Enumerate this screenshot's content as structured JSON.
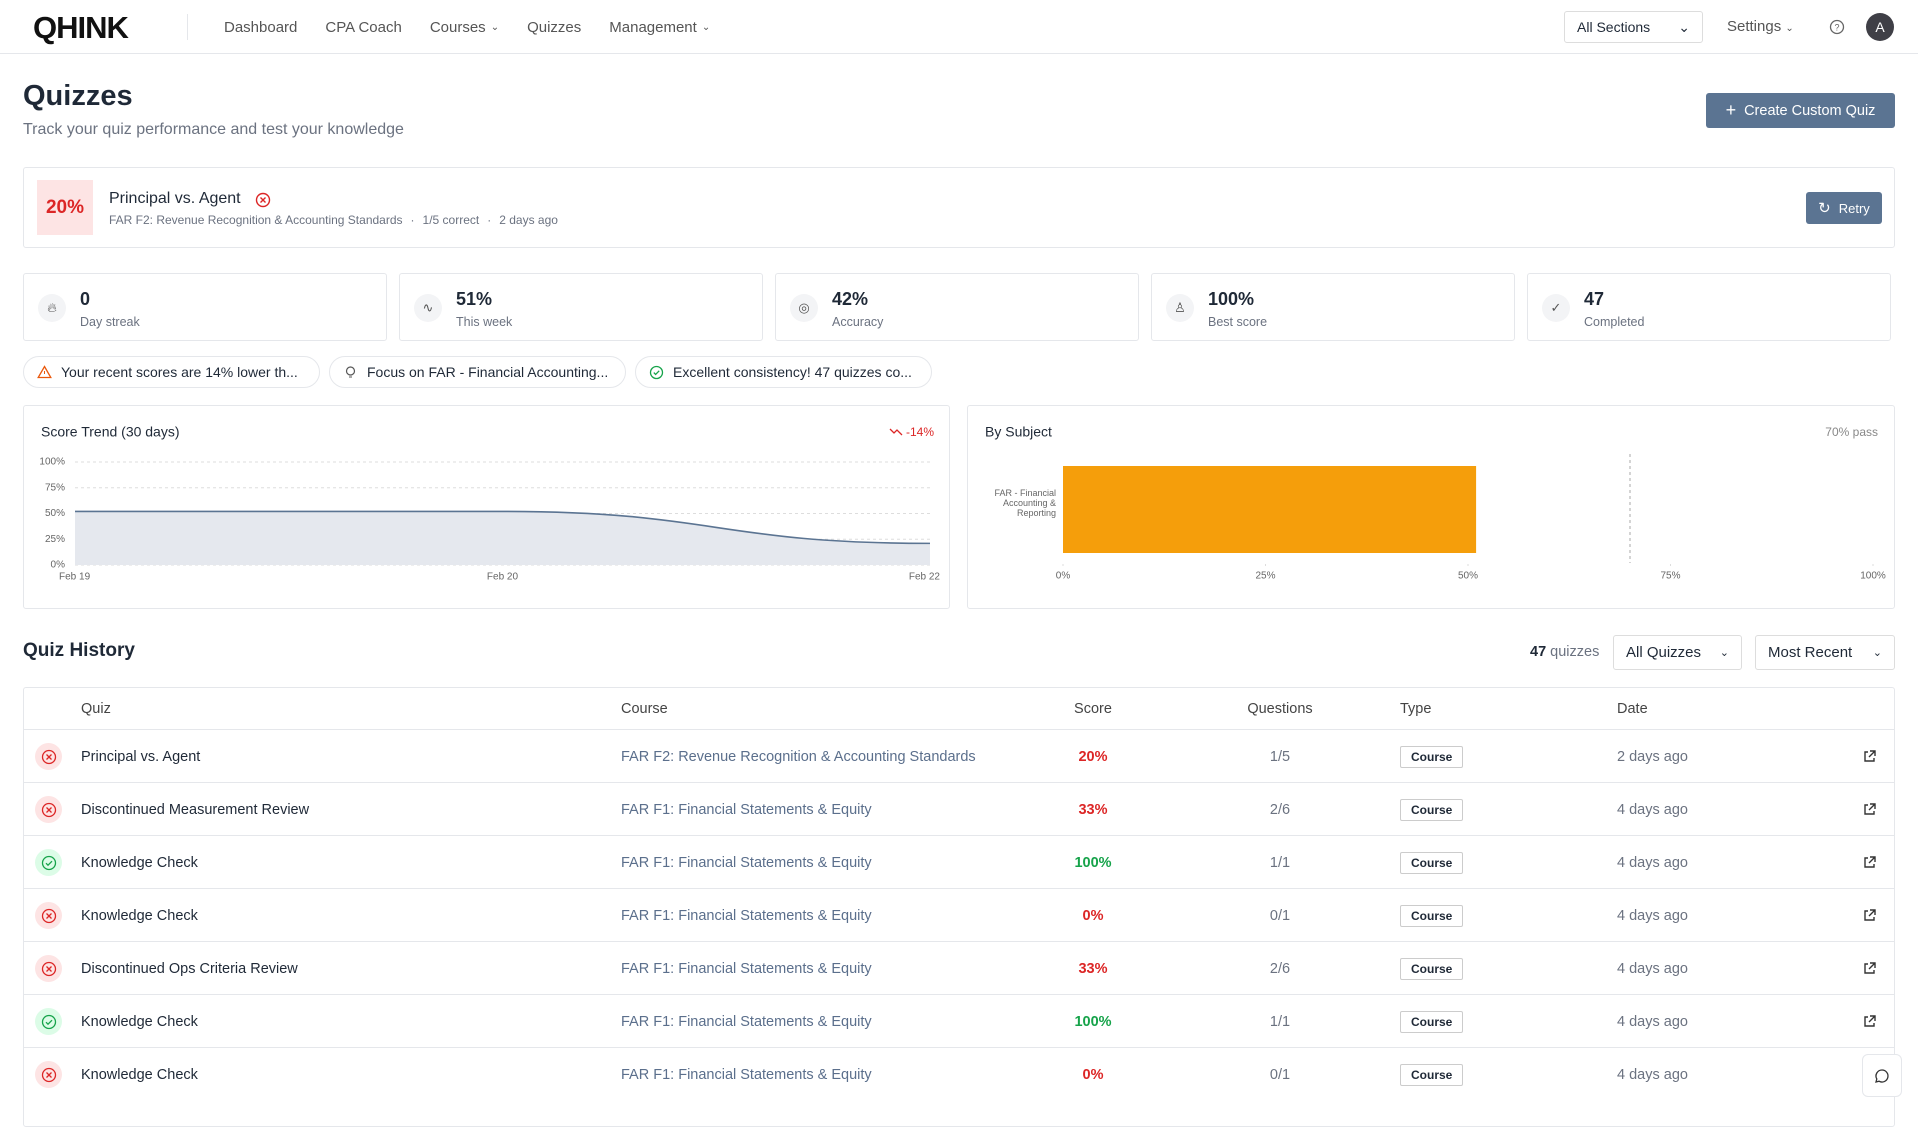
{
  "nav": {
    "logo": "QHINK",
    "links": [
      {
        "label": "Dashboard",
        "menu": false
      },
      {
        "label": "CPA Coach",
        "menu": false
      },
      {
        "label": "Courses",
        "menu": true
      },
      {
        "label": "Quizzes",
        "menu": false
      },
      {
        "label": "Management",
        "menu": true
      }
    ],
    "section_select": "All Sections",
    "settings": "Settings",
    "avatar": "A"
  },
  "header": {
    "title": "Quizzes",
    "subtitle": "Track your quiz performance and test your knowledge",
    "create_button": "Create Custom Quiz"
  },
  "latest": {
    "score": "20%",
    "title": "Principal vs. Agent",
    "course": "FAR F2: Revenue Recognition & Accounting Standards",
    "correct": "1/5 correct",
    "when": "2 days ago",
    "retry": "Retry"
  },
  "stats": [
    {
      "value": "0",
      "label": "Day streak"
    },
    {
      "value": "51%",
      "label": "This week"
    },
    {
      "value": "42%",
      "label": "Accuracy"
    },
    {
      "value": "100%",
      "label": "Best score"
    },
    {
      "value": "47",
      "label": "Completed"
    }
  ],
  "insights": [
    {
      "text": "Your recent scores are 14% lower th...",
      "kind": "warning"
    },
    {
      "text": "Focus on FAR - Financial Accounting...",
      "kind": "tip"
    },
    {
      "text": "Excellent consistency! 47 quizzes co...",
      "kind": "success"
    }
  ],
  "score_trend": {
    "type": "area",
    "title": "Score Trend (30 days)",
    "change": "-14%",
    "categories": [
      "Feb 19",
      "Feb 20",
      "Feb 22"
    ],
    "values": [
      52,
      52,
      21
    ],
    "ylim": [
      0,
      100
    ],
    "yticks": [
      {
        "value": 0,
        "label": "0%"
      },
      {
        "value": 25,
        "label": "25%"
      },
      {
        "value": 50,
        "label": "50%"
      },
      {
        "value": 75,
        "label": "75%"
      },
      {
        "value": 100,
        "label": "100%"
      }
    ],
    "color": "#5b7492"
  },
  "by_subject": {
    "type": "hbar",
    "title": "By Subject",
    "pass_label": "70% pass",
    "pass_value": 70,
    "categories": [
      "FAR - Financial Accounting & Reporting"
    ],
    "values": [
      51
    ],
    "color": "#f59e0b",
    "xlim": [
      0,
      100
    ],
    "xticks": [
      {
        "value": 0,
        "label": "0%"
      },
      {
        "value": 25,
        "label": "25%"
      },
      {
        "value": 50,
        "label": "50%"
      },
      {
        "value": 75,
        "label": "75%"
      },
      {
        "value": 100,
        "label": "100%"
      }
    ]
  },
  "history": {
    "title": "Quiz History",
    "count": "47",
    "count_unit": "quizzes",
    "filter": "All Quizzes",
    "sort": "Most Recent",
    "columns": [
      "Quiz",
      "Course",
      "Score",
      "Questions",
      "Type",
      "Date"
    ],
    "rows": [
      {
        "passed": false,
        "quiz": "Principal vs. Agent",
        "course": "FAR F2: Revenue Recognition & Accounting Standards",
        "score": "20%",
        "questions": "1/5",
        "type": "Course",
        "date": "2 days ago"
      },
      {
        "passed": false,
        "quiz": "Discontinued Measurement Review",
        "course": "FAR F1: Financial Statements & Equity",
        "score": "33%",
        "questions": "2/6",
        "type": "Course",
        "date": "4 days ago"
      },
      {
        "passed": true,
        "quiz": "Knowledge Check",
        "course": "FAR F1: Financial Statements & Equity",
        "score": "100%",
        "questions": "1/1",
        "type": "Course",
        "date": "4 days ago"
      },
      {
        "passed": false,
        "quiz": "Knowledge Check",
        "course": "FAR F1: Financial Statements & Equity",
        "score": "0%",
        "questions": "0/1",
        "type": "Course",
        "date": "4 days ago"
      },
      {
        "passed": false,
        "quiz": "Discontinued Ops Criteria Review",
        "course": "FAR F1: Financial Statements & Equity",
        "score": "33%",
        "questions": "2/6",
        "type": "Course",
        "date": "4 days ago"
      },
      {
        "passed": true,
        "quiz": "Knowledge Check",
        "course": "FAR F1: Financial Statements & Equity",
        "score": "100%",
        "questions": "1/1",
        "type": "Course",
        "date": "4 days ago"
      },
      {
        "passed": false,
        "quiz": "Knowledge Check",
        "course": "FAR F1: Financial Statements & Equity",
        "score": "0%",
        "questions": "0/1",
        "type": "Course",
        "date": "4 days ago"
      }
    ]
  }
}
